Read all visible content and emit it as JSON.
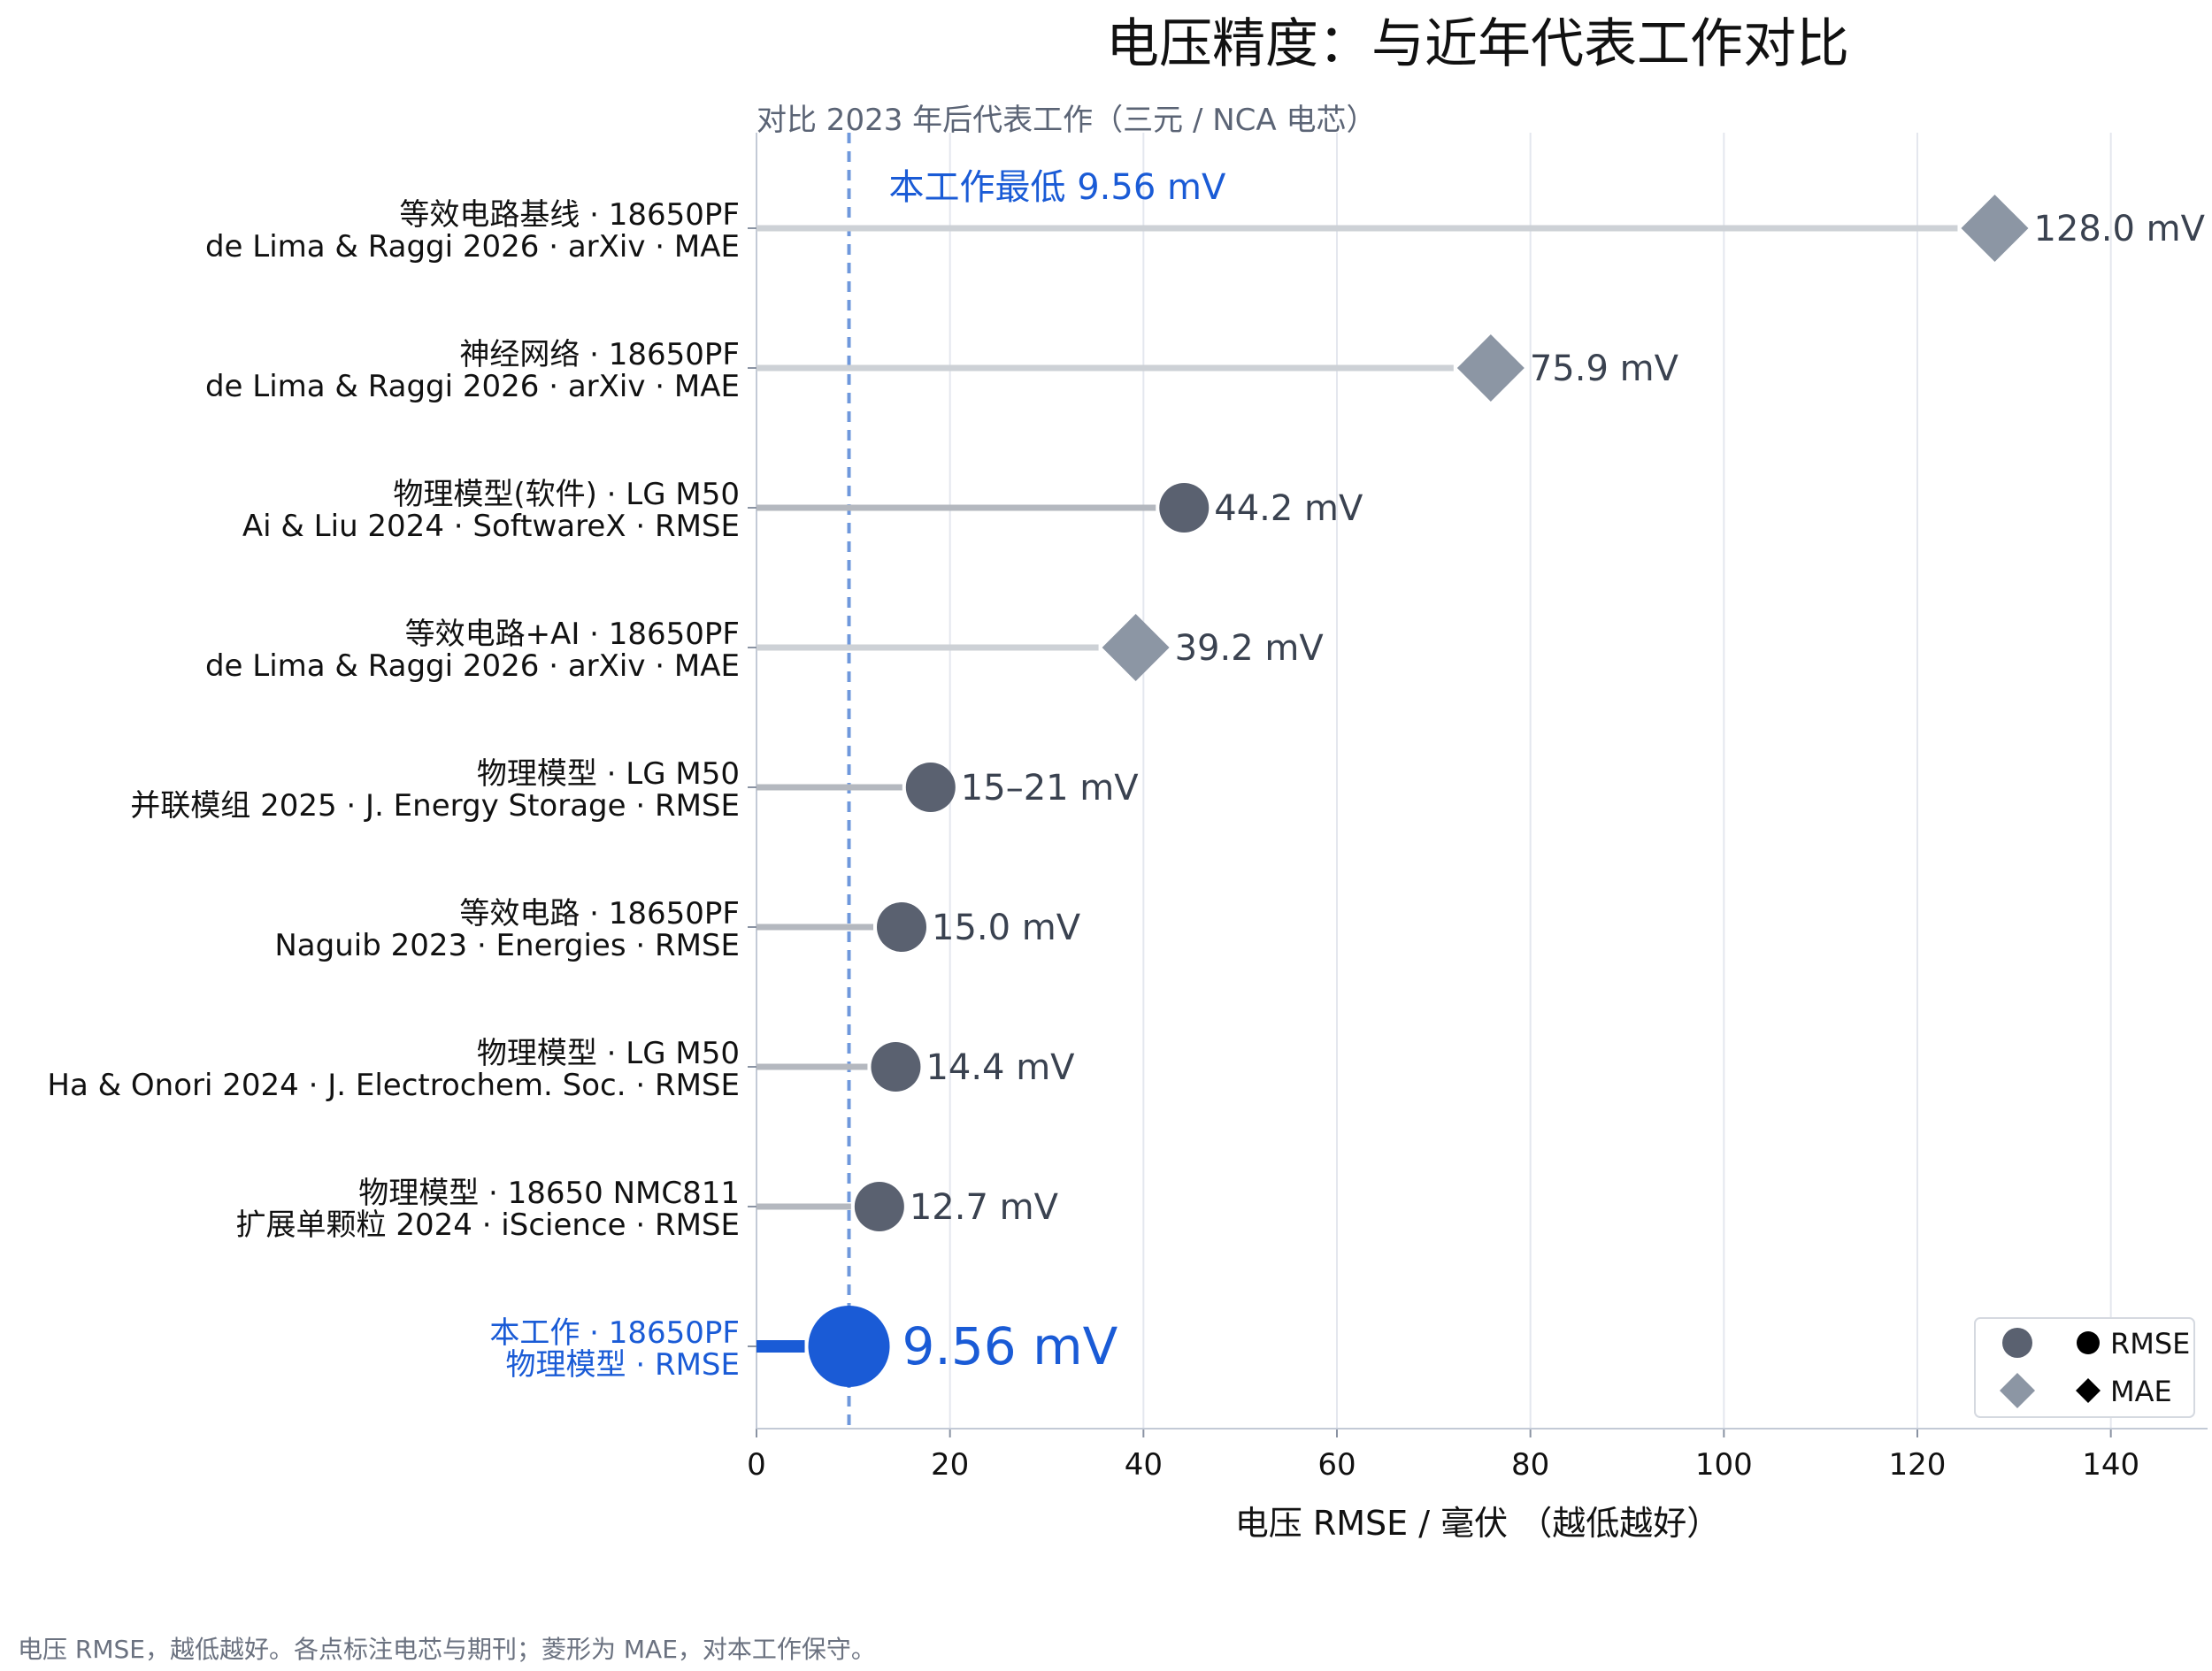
{
  "chart_data": {
    "type": "dot-lollipop",
    "title": "电压精度：与近年代表工作对比",
    "subtitle": "对比 2023 年后代表工作（三元 / NCA 电芯）",
    "xlabel": "电压 RMSE / 毫伏 （越低越好）",
    "xlim": [
      0,
      150
    ],
    "xticks": [
      0,
      20,
      40,
      60,
      80,
      100,
      120,
      140
    ],
    "grid": "x",
    "legend_position": "bottom-right",
    "legend": [
      {
        "label": "RMSE",
        "marker": "circle"
      },
      {
        "label": "MAE",
        "marker": "diamond"
      }
    ],
    "reference_line": {
      "value": 9.56,
      "label": "本工作最低 9.56 mV"
    },
    "rows": [
      {
        "line1": "等效电路基线 ·   18650PF",
        "line2": "de Lima & Raggi 2026 ·   arXiv ·   MAE",
        "value": 128.0,
        "value_label": "128.0 mV",
        "metric": "MAE",
        "highlight": false
      },
      {
        "line1": "神经网络 ·   18650PF",
        "line2": "de Lima & Raggi 2026 ·   arXiv ·   MAE",
        "value": 75.9,
        "value_label": "75.9 mV",
        "metric": "MAE",
        "highlight": false
      },
      {
        "line1": "物理模型(软件) ·   LG M50",
        "line2": "Ai & Liu 2024 ·   SoftwareX ·   RMSE",
        "value": 44.2,
        "value_label": "44.2 mV",
        "metric": "RMSE",
        "highlight": false
      },
      {
        "line1": "等效电路+AI ·   18650PF",
        "line2": "de Lima & Raggi 2026 ·   arXiv ·   MAE",
        "value": 39.2,
        "value_label": "39.2 mV",
        "metric": "MAE",
        "highlight": false
      },
      {
        "line1": "物理模型 ·   LG M50",
        "line2": "并联模组 2025 ·   J. Energy Storage ·   RMSE",
        "value": 18,
        "value_label": "15–21 mV",
        "metric": "RMSE",
        "highlight": false
      },
      {
        "line1": "等效电路 ·   18650PF",
        "line2": "Naguib 2023 ·   Energies ·   RMSE",
        "value": 15.0,
        "value_label": "15.0 mV",
        "metric": "RMSE",
        "highlight": false
      },
      {
        "line1": "物理模型 ·   LG M50",
        "line2": "Ha & Onori 2024 ·   J. Electrochem. Soc. ·   RMSE",
        "value": 14.4,
        "value_label": "14.4 mV",
        "metric": "RMSE",
        "highlight": false
      },
      {
        "line1": "物理模型 ·   18650 NMC811",
        "line2": "扩展单颗粒 2024 ·   iScience ·   RMSE",
        "value": 12.7,
        "value_label": "12.7 mV",
        "metric": "RMSE",
        "highlight": false
      },
      {
        "line1": "本工作 ·   18650PF",
        "line2": "物理模型 ·   RMSE",
        "value": 9.56,
        "value_label": "9.56 mV",
        "metric": "RMSE",
        "highlight": true
      }
    ],
    "colors": {
      "highlight": "#1a5bd6",
      "rmse_marker": "#5a6170",
      "mae_marker": "#8c96a4",
      "rmse_stem": "#b4b8bf",
      "mae_stem": "#cdd1d6",
      "grid": "#e4e7ee",
      "reference_line": "#6f98dc",
      "text": "#111111",
      "value_text": "#3a4250"
    }
  },
  "footnote": "电压 RMSE，越低越好。各点标注电芯与期刊；菱形为 MAE，对本工作保守。"
}
